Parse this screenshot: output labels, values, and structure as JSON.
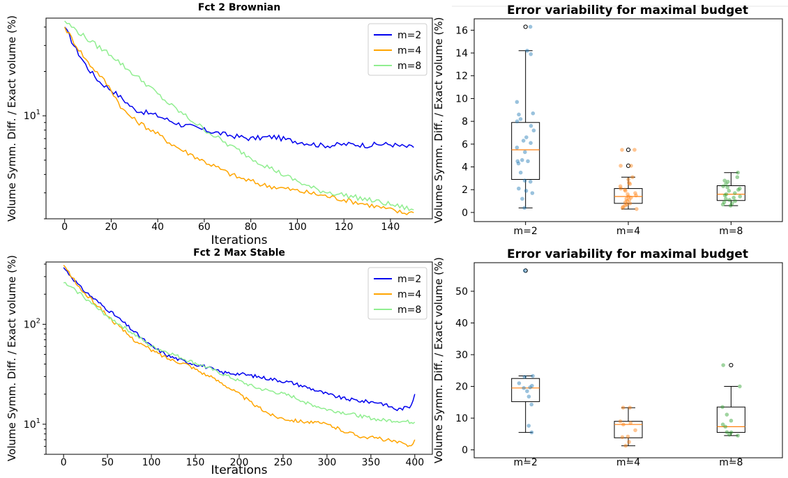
{
  "chart_data": [
    {
      "type": "line",
      "title": "Fct 2 Brownian",
      "xlabel": "Iterations",
      "ylabel": "Volume Symm. Diff. / Exact volume (%)",
      "yscale": "log",
      "xlim": [
        -8,
        158
      ],
      "ylim": [
        2.0,
        46
      ],
      "xticks": [
        0,
        20,
        40,
        60,
        80,
        100,
        120,
        140
      ],
      "ytick_labels": [
        {
          "value": 10,
          "base": "10",
          "exp": "1"
        }
      ],
      "legend": "top-right",
      "grid": false,
      "series": [
        {
          "name": "m=2",
          "color": "#0000ee",
          "x": [
            0,
            5,
            10,
            15,
            20,
            25,
            30,
            35,
            40,
            45,
            50,
            55,
            60,
            65,
            70,
            75,
            80,
            85,
            90,
            95,
            100,
            105,
            110,
            115,
            120,
            125,
            130,
            135,
            140,
            145,
            150
          ],
          "y": [
            40,
            28,
            21,
            17,
            15,
            13,
            11,
            10.5,
            10.0,
            9.3,
            8.7,
            8.4,
            8.0,
            7.7,
            7.4,
            7.2,
            7.0,
            7.1,
            7.2,
            6.9,
            6.7,
            6.5,
            6.3,
            6.3,
            6.4,
            6.4,
            6.3,
            6.4,
            6.4,
            6.2,
            6.1
          ]
        },
        {
          "name": "m=4",
          "color": "#ffa500",
          "x": [
            0,
            5,
            10,
            15,
            20,
            25,
            30,
            35,
            40,
            45,
            50,
            55,
            60,
            65,
            70,
            75,
            80,
            85,
            90,
            95,
            100,
            105,
            110,
            115,
            120,
            125,
            130,
            135,
            140,
            145,
            150
          ],
          "y": [
            40,
            30,
            23,
            19,
            15,
            11,
            9.4,
            8.4,
            7.5,
            6.6,
            5.9,
            5.4,
            4.9,
            4.5,
            4.1,
            3.8,
            3.6,
            3.4,
            3.3,
            3.2,
            3.1,
            3.0,
            2.9,
            2.8,
            2.7,
            2.6,
            2.5,
            2.4,
            2.3,
            2.2,
            2.2
          ]
        },
        {
          "name": "m=8",
          "color": "#90ee90",
          "x": [
            0,
            5,
            10,
            15,
            20,
            25,
            30,
            35,
            40,
            45,
            50,
            55,
            60,
            65,
            70,
            75,
            80,
            85,
            90,
            95,
            100,
            105,
            110,
            115,
            120,
            125,
            130,
            135,
            140,
            145,
            150
          ],
          "y": [
            44,
            38,
            33,
            29,
            26,
            22,
            19,
            16.5,
            14,
            12,
            10.5,
            9.2,
            8.1,
            7.2,
            6.4,
            5.8,
            5.2,
            4.7,
            4.3,
            3.9,
            3.6,
            3.3,
            3.1,
            3.0,
            2.9,
            2.8,
            2.7,
            2.6,
            2.5,
            2.4,
            2.3
          ]
        }
      ]
    },
    {
      "type": "box",
      "title": "Error variability for maximal budget",
      "ylabel": "Volume Symm. Diff. / Exact volume (%)",
      "ylim": [
        -0.8,
        17
      ],
      "yticks": [
        0,
        2,
        4,
        6,
        8,
        10,
        12,
        14,
        16
      ],
      "categories": [
        "m=2",
        "m=4",
        "m=8"
      ],
      "boxes": [
        {
          "name": "m=2",
          "color": "#1f77b4",
          "q1": 2.9,
          "median": 5.5,
          "q3": 7.9,
          "whisker_low": 0.4,
          "whisker_high": 14.2,
          "outliers": [
            16.3
          ],
          "points": [
            0.4,
            1.2,
            1.7,
            1.9,
            2.1,
            2.7,
            2.8,
            3.5,
            4.3,
            4.5,
            4.5,
            4.6,
            5.3,
            5.7,
            6.1,
            6.3,
            6.6,
            7.2,
            7.6,
            8.0,
            8.2,
            8.6,
            8.7,
            9.7,
            13.9,
            14.2,
            16.3
          ]
        },
        {
          "name": "m=4",
          "color": "#ff7f0e",
          "q1": 0.8,
          "median": 1.4,
          "q3": 2.1,
          "whisker_low": 0.3,
          "whisker_high": 3.1,
          "outliers": [
            4.1,
            5.5
          ],
          "points": [
            0.3,
            0.4,
            0.5,
            0.6,
            0.7,
            0.8,
            0.9,
            1.0,
            1.1,
            1.2,
            1.3,
            1.4,
            1.5,
            1.6,
            1.7,
            1.9,
            2.0,
            2.1,
            2.3,
            2.5,
            2.6,
            2.9,
            3.1,
            4.1,
            4.1,
            5.5,
            5.5
          ]
        },
        {
          "name": "m=8",
          "color": "#2ca02c",
          "q1": 1.05,
          "median": 1.6,
          "q3": 2.35,
          "whisker_low": 0.6,
          "whisker_high": 3.5,
          "outliers": [],
          "points": [
            0.6,
            0.7,
            0.8,
            0.9,
            1.0,
            1.1,
            1.2,
            1.3,
            1.4,
            1.5,
            1.6,
            1.7,
            1.9,
            2.0,
            2.1,
            2.2,
            2.3,
            2.5,
            2.7,
            2.8,
            3.1,
            3.5
          ]
        }
      ]
    },
    {
      "type": "line",
      "title": "Fct 2 Max Stable",
      "xlabel": "Iterations",
      "ylabel": "Volume Symm. Diff. / Exact volume (%)",
      "yscale": "log",
      "xlim": [
        -20,
        420
      ],
      "ylim": [
        5.0,
        420
      ],
      "xticks": [
        0,
        50,
        100,
        150,
        200,
        250,
        300,
        350,
        400
      ],
      "ytick_labels": [
        {
          "value": 10,
          "base": "10",
          "exp": "1"
        },
        {
          "value": 100,
          "base": "10",
          "exp": "2"
        }
      ],
      "legend": "top-right",
      "grid": false,
      "series": [
        {
          "name": "m=2",
          "color": "#0000ee",
          "x": [
            0,
            20,
            40,
            60,
            80,
            100,
            120,
            140,
            160,
            180,
            200,
            220,
            240,
            260,
            280,
            300,
            320,
            340,
            360,
            380,
            395,
            400
          ],
          "y": [
            370,
            230,
            165,
            120,
            85,
            60,
            48,
            42,
            38,
            33,
            32,
            30,
            28,
            26,
            23,
            20,
            18,
            17,
            16.5,
            14,
            15,
            20
          ]
        },
        {
          "name": "m=4",
          "color": "#ffa500",
          "x": [
            0,
            20,
            40,
            60,
            80,
            100,
            120,
            140,
            160,
            180,
            200,
            220,
            240,
            260,
            280,
            300,
            320,
            340,
            360,
            380,
            395,
            400
          ],
          "y": [
            390,
            220,
            150,
            100,
            70,
            55,
            45,
            40,
            32,
            26,
            20,
            15,
            12,
            11,
            10.5,
            10,
            8.5,
            7.5,
            7.2,
            6.6,
            6.0,
            7.0
          ]
        },
        {
          "name": "m=8",
          "color": "#90ee90",
          "x": [
            0,
            20,
            40,
            60,
            80,
            100,
            120,
            140,
            160,
            180,
            200,
            220,
            240,
            260,
            280,
            300,
            320,
            340,
            360,
            380,
            395,
            400
          ],
          "y": [
            260,
            200,
            140,
            105,
            80,
            60,
            52,
            44,
            38,
            32,
            27,
            23,
            21,
            19,
            16,
            14,
            13,
            12,
            11,
            10.8,
            10.5,
            10.5
          ]
        }
      ]
    },
    {
      "type": "box",
      "title": "Error variability for maximal budget",
      "ylabel": "Volume Symm. Diff. / Exact volume (%)",
      "ylim": [
        -2.5,
        59
      ],
      "yticks": [
        0,
        10,
        20,
        30,
        40,
        50
      ],
      "categories": [
        "m=2",
        "m=4",
        "m=8"
      ],
      "boxes": [
        {
          "name": "m=2",
          "color": "#1f77b4",
          "q1": 15.2,
          "median": 19.5,
          "q3": 22.5,
          "whisker_low": 5.5,
          "whisker_high": 23.3,
          "outliers": [
            56.5
          ],
          "points": [
            5.5,
            7.6,
            14.3,
            16.8,
            18.5,
            19.5,
            19.7,
            20.2,
            21.0,
            23.0,
            23.3,
            56.5
          ]
        },
        {
          "name": "m=4",
          "color": "#ff7f0e",
          "q1": 3.8,
          "median": 8.0,
          "q3": 9.0,
          "whisker_low": 1.3,
          "whisker_high": 13.3,
          "outliers": [],
          "points": [
            1.3,
            2.5,
            4.0,
            4.2,
            6.2,
            8.0,
            8.5,
            9.0,
            13.3,
            13.3
          ]
        },
        {
          "name": "m=8",
          "color": "#2ca02c",
          "q1": 5.5,
          "median": 7.3,
          "q3": 13.5,
          "whisker_low": 4.5,
          "whisker_high": 20.0,
          "outliers": [
            26.7
          ],
          "points": [
            4.5,
            4.8,
            5.5,
            5.6,
            7.3,
            8.0,
            9.2,
            11.1,
            13.5,
            20.0,
            26.7
          ]
        }
      ]
    }
  ]
}
